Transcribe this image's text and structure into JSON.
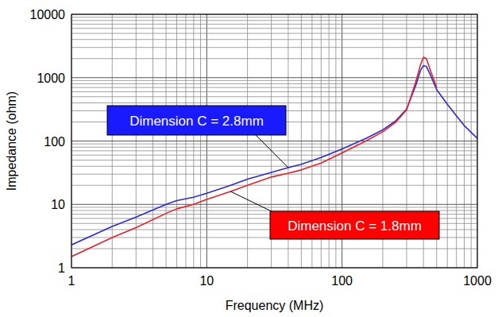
{
  "chart_data": {
    "type": "line",
    "x_label": "Frequency (MHz)",
    "y_label": "Impedance (ohm)",
    "log": true,
    "grid": true,
    "xlim": [
      1,
      1000
    ],
    "ylim": [
      1,
      10000
    ],
    "xticks": [
      1,
      10,
      100,
      1000
    ],
    "yticks": [
      1,
      10,
      100,
      1000,
      10000
    ],
    "x": [
      1,
      2,
      3,
      5,
      6,
      8,
      10,
      15,
      20,
      30,
      40,
      50,
      70,
      100,
      150,
      200,
      250,
      300,
      350,
      380,
      400,
      420,
      450,
      500,
      600,
      700,
      800,
      1000
    ],
    "series": [
      {
        "name": "Dimension C = 2.8mm",
        "color": "#2b2bd6",
        "values": [
          2.3,
          4.5,
          6.3,
          10,
          11.5,
          13,
          15,
          20,
          25,
          32,
          38,
          43,
          55,
          75,
          110,
          150,
          210,
          320,
          750,
          1300,
          1550,
          1500,
          1100,
          650,
          380,
          250,
          175,
          110
        ]
      },
      {
        "name": "Dimension C = 1.8mm",
        "color": "#e8202a",
        "values": [
          1.5,
          3,
          4.3,
          7.2,
          8.5,
          10,
          12,
          16,
          20,
          27,
          31,
          35,
          45,
          65,
          100,
          140,
          200,
          310,
          850,
          1600,
          2100,
          2000,
          1300,
          700,
          null,
          null,
          null,
          null
        ]
      }
    ],
    "annotations": [
      {
        "text": "Dimension C = 2.8mm",
        "series": 0,
        "x": 40,
        "color": "#1a1aff"
      },
      {
        "text": "Dimension C = 1.8mm",
        "series": 1,
        "x": 15,
        "color": "#ff0000"
      }
    ]
  }
}
